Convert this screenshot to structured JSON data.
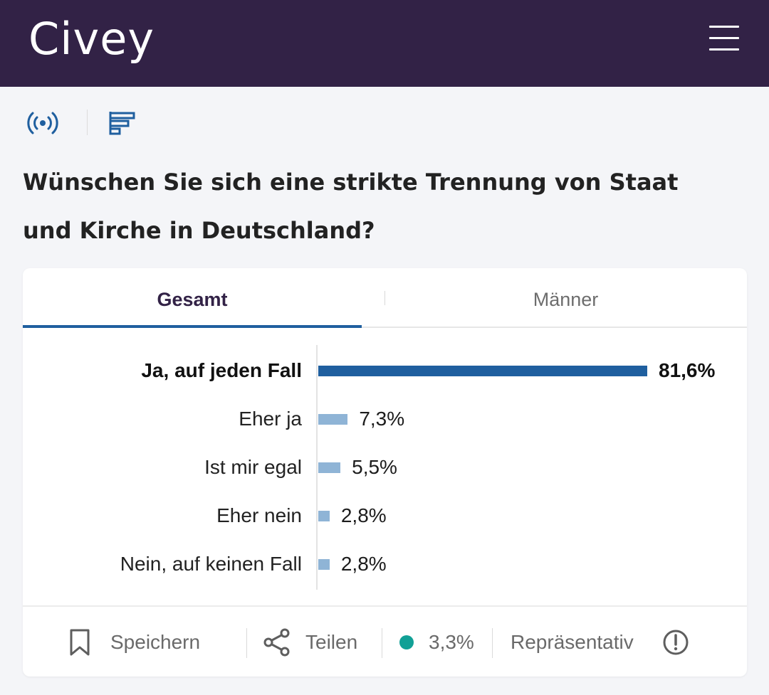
{
  "header": {
    "logo": "Civey",
    "menu_icon": "hamburger-menu-icon",
    "background": "#322246"
  },
  "toolbar": {
    "icons": [
      "live-broadcast-icon",
      "bar-chart-icon"
    ],
    "accent": "#1f5f9f"
  },
  "question": "Wünschen Sie sich eine strikte Trennung von Staat und Kirche in Deutschland?",
  "tabs": [
    {
      "label": "Gesamt",
      "active": true
    },
    {
      "label": "Männer",
      "active": false
    }
  ],
  "chart_data": {
    "type": "bar",
    "orientation": "horizontal",
    "categories": [
      "Ja, auf jeden Fall",
      "Eher ja",
      "Ist mir egal",
      "Eher nein",
      "Nein, auf keinen Fall"
    ],
    "values": [
      81.6,
      7.3,
      5.5,
      2.8,
      2.8
    ],
    "value_labels": [
      "81,6%",
      "7,3%",
      "5,5%",
      "2,8%",
      "2,8%"
    ],
    "colors": [
      "#1f5f9f",
      "#8fb4d6",
      "#8fb4d6",
      "#8fb4d6",
      "#8fb4d6"
    ],
    "xlim": [
      0,
      81.6
    ]
  },
  "footer": {
    "save_label": "Speichern",
    "share_label": "Teilen",
    "error_margin": "3,3%",
    "error_dot_color": "#11a096",
    "representative_label": "Repräsentativ",
    "icons": [
      "bookmark-icon",
      "share-icon",
      "info-exclamation-icon"
    ]
  }
}
